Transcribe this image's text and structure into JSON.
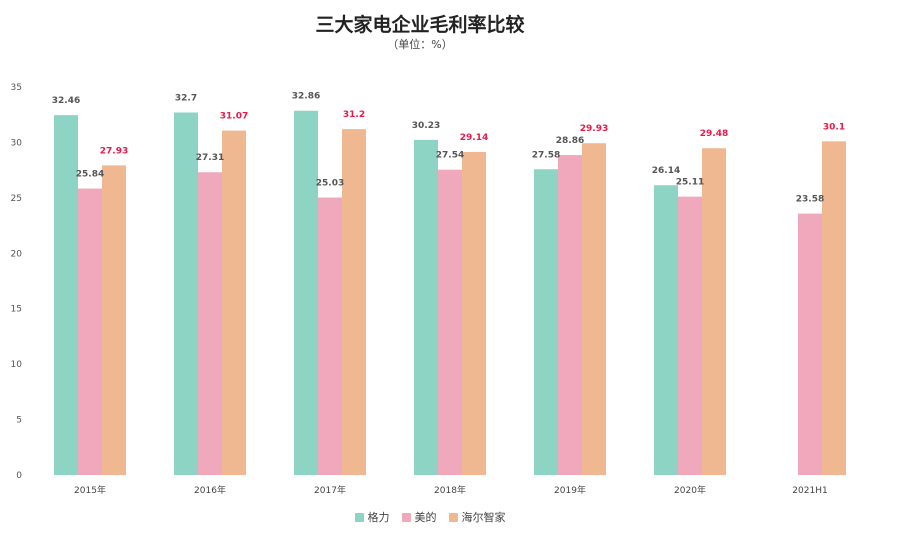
{
  "chart_data": {
    "type": "bar",
    "title": "三大家电企业毛利率比较",
    "subtitle": "（单位：%）",
    "categories": [
      "2015年",
      "2016年",
      "2017年",
      "2018年",
      "2019年",
      "2020年",
      "2021H1"
    ],
    "ylim": [
      0,
      35
    ],
    "yticks": [
      0,
      5,
      10,
      15,
      20,
      25,
      30,
      35
    ],
    "series": [
      {
        "name": "格力",
        "color": "#8ed4c4",
        "label_color": "#555555",
        "values": [
          32.46,
          32.7,
          32.86,
          30.23,
          27.58,
          26.14,
          null
        ],
        "labels": [
          "32.46",
          "32.7",
          "32.86",
          "30.23",
          "27.58",
          "26.14",
          ""
        ]
      },
      {
        "name": "美的",
        "color": "#f0a8bc",
        "label_color": "#555555",
        "values": [
          25.84,
          27.31,
          25.03,
          27.54,
          28.86,
          25.11,
          23.58
        ],
        "labels": [
          "25.84",
          "27.31",
          "25.03",
          "27.54",
          "28.86",
          "25.11",
          "23.58"
        ]
      },
      {
        "name": "海尔智家",
        "color": "#f0b890",
        "label_color": "#e8194a",
        "values": [
          27.93,
          31.07,
          31.2,
          29.14,
          29.93,
          29.48,
          30.1
        ],
        "labels": [
          "27.93",
          "31.07",
          "31.2",
          "29.14",
          "29.93",
          "29.48",
          "30.1"
        ]
      }
    ],
    "grid": false,
    "legend_position": "bottom"
  }
}
